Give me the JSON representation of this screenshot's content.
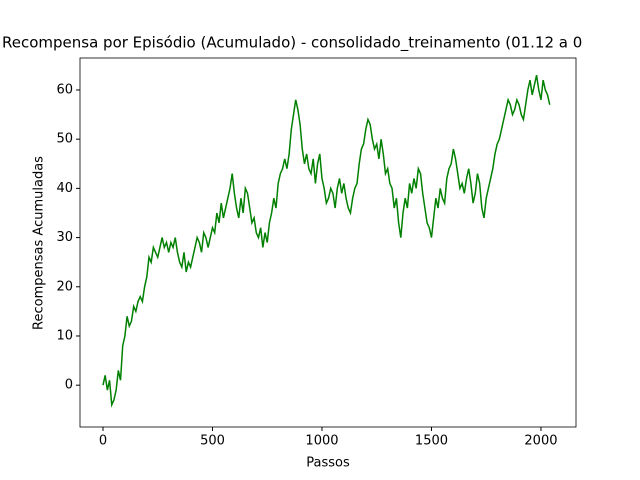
{
  "chart_data": {
    "type": "line",
    "title": "Recompensa por Episódio (Acumulado) - consolidado_treinamento (01.12 a 0",
    "xlabel": "Passos",
    "ylabel": "Recompensas Acumuladas",
    "x": [
      0,
      10,
      20,
      30,
      40,
      50,
      60,
      70,
      80,
      90,
      100,
      110,
      120,
      130,
      140,
      150,
      160,
      170,
      180,
      190,
      200,
      210,
      220,
      230,
      240,
      250,
      260,
      270,
      280,
      290,
      300,
      310,
      320,
      330,
      340,
      350,
      360,
      370,
      380,
      390,
      400,
      410,
      420,
      430,
      440,
      450,
      460,
      470,
      480,
      490,
      500,
      510,
      520,
      530,
      540,
      550,
      560,
      570,
      580,
      590,
      600,
      610,
      620,
      630,
      640,
      650,
      660,
      670,
      680,
      690,
      700,
      710,
      720,
      730,
      740,
      750,
      760,
      770,
      780,
      790,
      800,
      810,
      820,
      830,
      840,
      850,
      860,
      870,
      880,
      890,
      900,
      910,
      920,
      930,
      940,
      950,
      960,
      970,
      980,
      990,
      1000,
      1010,
      1020,
      1030,
      1040,
      1050,
      1060,
      1070,
      1080,
      1090,
      1100,
      1110,
      1120,
      1130,
      1140,
      1150,
      1160,
      1170,
      1180,
      1190,
      1200,
      1210,
      1220,
      1230,
      1240,
      1250,
      1260,
      1270,
      1280,
      1290,
      1300,
      1310,
      1320,
      1330,
      1340,
      1350,
      1360,
      1370,
      1380,
      1390,
      1400,
      1410,
      1420,
      1430,
      1440,
      1450,
      1460,
      1470,
      1480,
      1490,
      1500,
      1510,
      1520,
      1530,
      1540,
      1550,
      1560,
      1570,
      1580,
      1590,
      1600,
      1610,
      1620,
      1630,
      1640,
      1650,
      1660,
      1670,
      1680,
      1690,
      1700,
      1710,
      1720,
      1730,
      1740,
      1750,
      1760,
      1770,
      1780,
      1790,
      1800,
      1810,
      1820,
      1830,
      1840,
      1850,
      1860,
      1870,
      1880,
      1890,
      1900,
      1910,
      1920,
      1930,
      1940,
      1950,
      1960,
      1970,
      1980,
      1990,
      2000,
      2010,
      2020,
      2030,
      2040
    ],
    "series": [
      {
        "color": "#008000",
        "values": [
          0,
          2,
          -1,
          1,
          -4,
          -3,
          -1,
          3,
          1,
          8,
          10,
          14,
          12,
          13,
          16,
          15,
          17,
          18,
          17,
          20,
          22,
          26,
          25,
          28,
          27,
          26,
          28,
          30,
          28,
          29,
          27,
          29,
          28,
          30,
          27,
          25,
          24,
          27,
          23,
          25,
          24,
          26,
          28,
          30,
          29,
          27,
          31,
          30,
          28,
          30,
          32,
          31,
          35,
          33,
          37,
          34,
          36,
          38,
          40,
          43,
          39,
          36,
          34,
          38,
          35,
          40,
          39,
          36,
          33,
          34,
          31,
          30,
          32,
          28,
          31,
          29,
          33,
          35,
          38,
          36,
          41,
          43,
          44,
          46,
          44,
          47,
          52,
          55,
          58,
          56,
          53,
          48,
          45,
          47,
          44,
          43,
          46,
          41,
          45,
          47,
          42,
          40,
          37,
          38,
          40,
          39,
          36,
          40,
          42,
          39,
          41,
          38,
          36,
          35,
          38,
          40,
          41,
          45,
          48,
          49,
          52,
          54,
          53,
          50,
          48,
          49,
          46,
          50,
          47,
          43,
          44,
          41,
          40,
          36,
          38,
          33,
          30,
          35,
          38,
          36,
          41,
          39,
          42,
          40,
          44,
          43,
          39,
          36,
          33,
          32,
          30,
          34,
          38,
          36,
          40,
          38,
          37,
          42,
          44,
          45,
          48,
          46,
          43,
          40,
          41,
          39,
          42,
          44,
          41,
          37,
          39,
          43,
          41,
          36,
          34,
          38,
          40,
          42,
          44,
          47,
          49,
          50,
          52,
          54,
          56,
          58,
          57,
          55,
          56,
          58,
          57,
          55,
          54,
          57,
          60,
          62,
          59,
          61,
          63,
          60,
          58,
          62,
          60,
          59,
          57
        ]
      }
    ],
    "xlim": [
      -105,
      2160
    ],
    "ylim": [
      -8.5,
      66.5
    ],
    "xticks": [
      0,
      500,
      1000,
      1500,
      2000
    ],
    "yticks": [
      0,
      10,
      20,
      30,
      40,
      50,
      60
    ]
  }
}
